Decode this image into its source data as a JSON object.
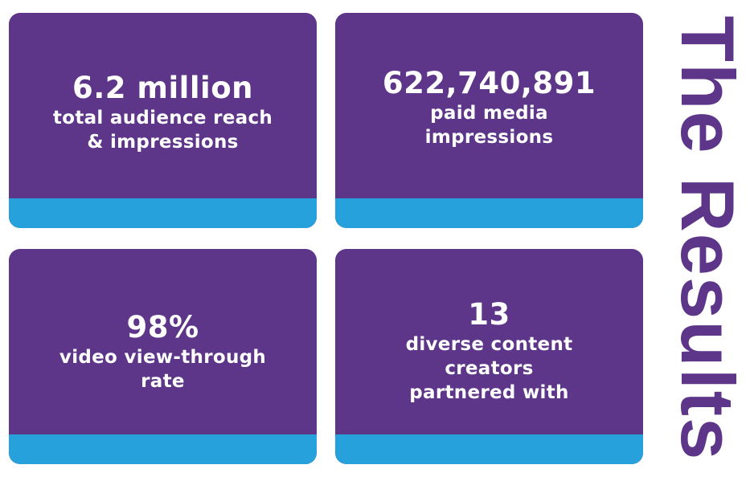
{
  "colors": {
    "card_background": "#5d3589",
    "card_band": "#27a1dc",
    "title_color": "#5d3589"
  },
  "title": "The Results",
  "cards": [
    {
      "stat": "6.2 million",
      "description": "total audience reach\n& impressions"
    },
    {
      "stat": "622,740,891",
      "description": "paid media\nimpressions"
    },
    {
      "stat": "98%",
      "description": "video view-through\nrate"
    },
    {
      "stat": "13",
      "description": "diverse content\ncreators\npartnered with"
    }
  ]
}
